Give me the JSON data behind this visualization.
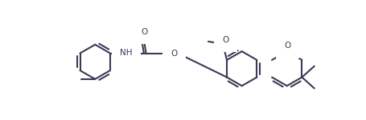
{
  "bg": "#ffffff",
  "line_color": "#3a3a58",
  "lw": 1.5,
  "figsize": [
    4.56,
    1.5
  ],
  "dpi": 100,
  "labels": [
    {
      "text": "O",
      "role": "carbonyl"
    },
    {
      "text": "NH",
      "role": "amide"
    },
    {
      "text": "O",
      "role": "ether_linker"
    },
    {
      "text": "O",
      "role": "methoxy_atom"
    },
    {
      "text": "O",
      "role": "chromen_oxygen"
    }
  ]
}
